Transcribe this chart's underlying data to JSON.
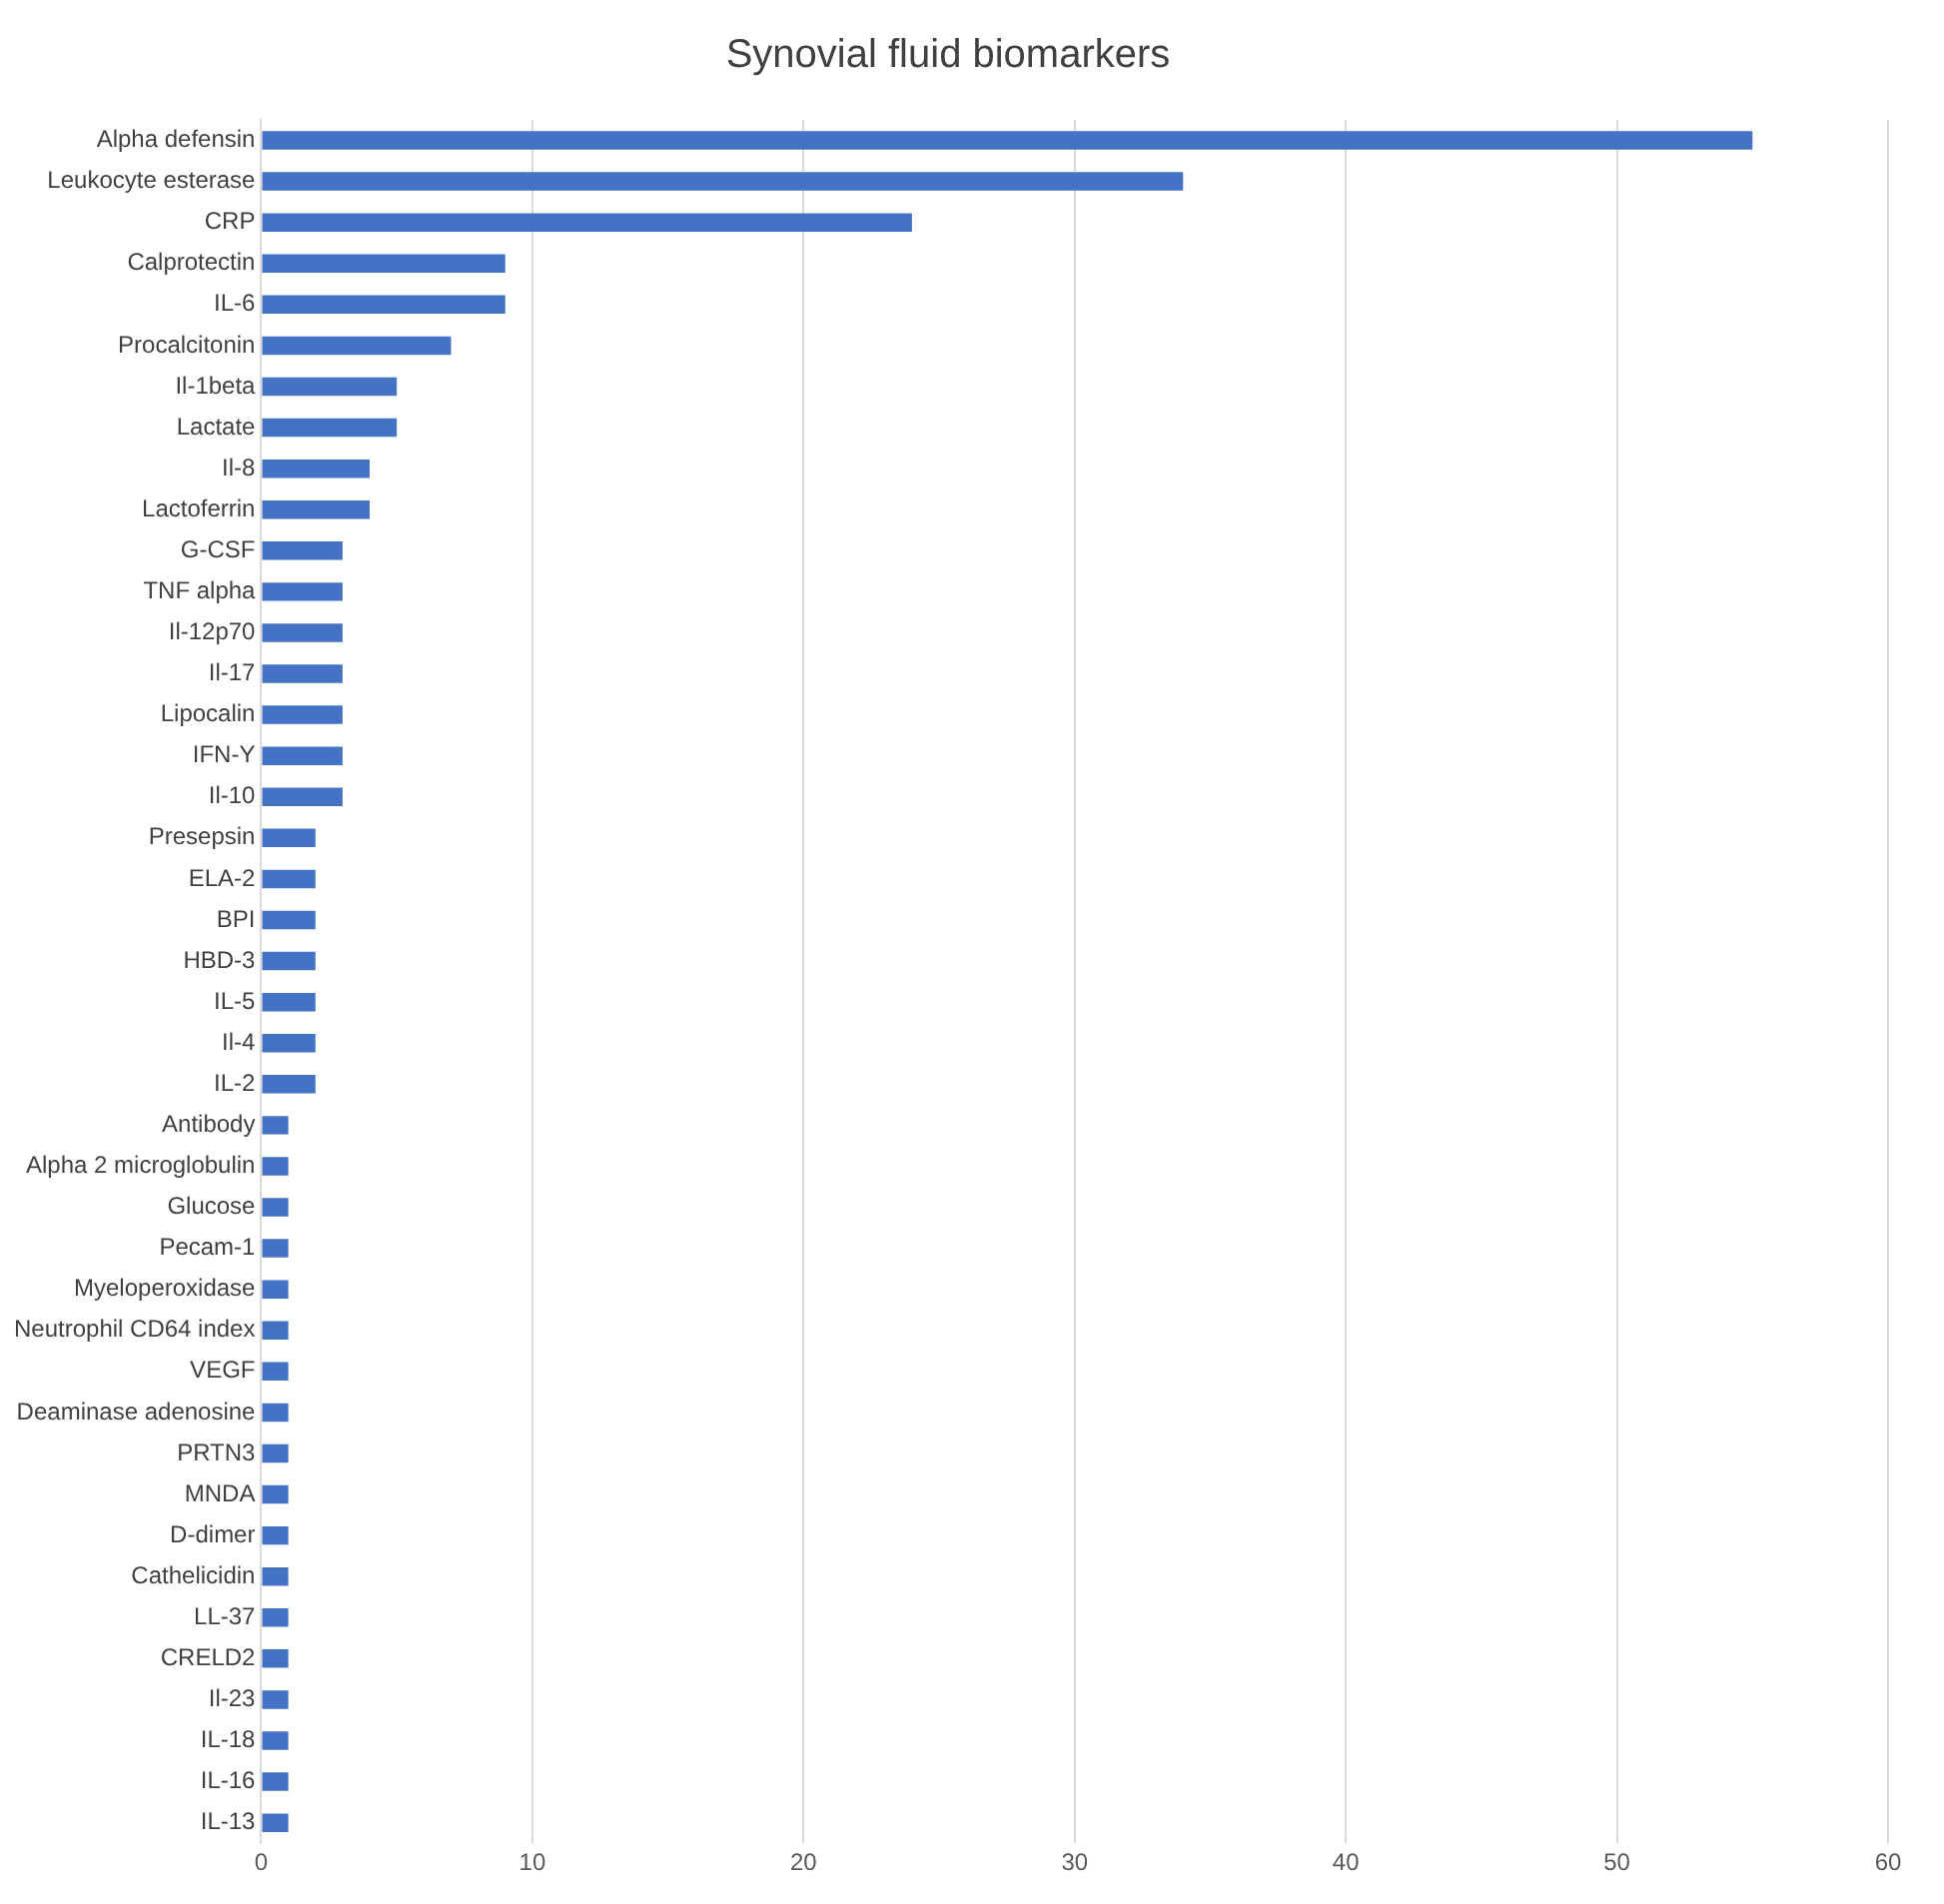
{
  "chart_data": {
    "type": "bar",
    "orientation": "horizontal",
    "title": "Synovial fluid biomarkers",
    "categories": [
      "Alpha defensin",
      "Leukocyte esterase",
      "CRP",
      "Calprotectin",
      "IL-6",
      "Procalcitonin",
      "Il-1beta",
      "Lactate",
      "Il-8",
      "Lactoferrin",
      "G-CSF",
      "TNF alpha",
      "Il-12p70",
      "Il-17",
      "Lipocalin",
      "IFN-Y",
      "Il-10",
      "Presepsin",
      "ELA-2",
      "BPI",
      "HBD-3",
      "IL-5",
      "Il-4",
      "IL-2",
      "Antibody",
      "Alpha 2 microglobulin",
      "Glucose",
      "Pecam-1",
      "Myeloperoxidase",
      "Neutrophil CD64 index",
      "VEGF",
      "Deaminase adenosine",
      "PRTN3",
      "MNDA",
      "D-dimer",
      "Cathelicidin",
      "LL-37",
      "CRELD2",
      "Il-23",
      "IL-18",
      "IL-16",
      "IL-13"
    ],
    "values": [
      55,
      34,
      24,
      9,
      9,
      7,
      5,
      5,
      4,
      4,
      3,
      3,
      3,
      3,
      3,
      3,
      3,
      2,
      2,
      2,
      2,
      2,
      2,
      2,
      1,
      1,
      1,
      1,
      1,
      1,
      1,
      1,
      1,
      1,
      1,
      1,
      1,
      1,
      1,
      1,
      1,
      1
    ],
    "color": "#4472c4",
    "xlim": [
      0,
      60
    ],
    "xticks": [
      0,
      10,
      20,
      30,
      40,
      50,
      60
    ],
    "grid": "x"
  }
}
